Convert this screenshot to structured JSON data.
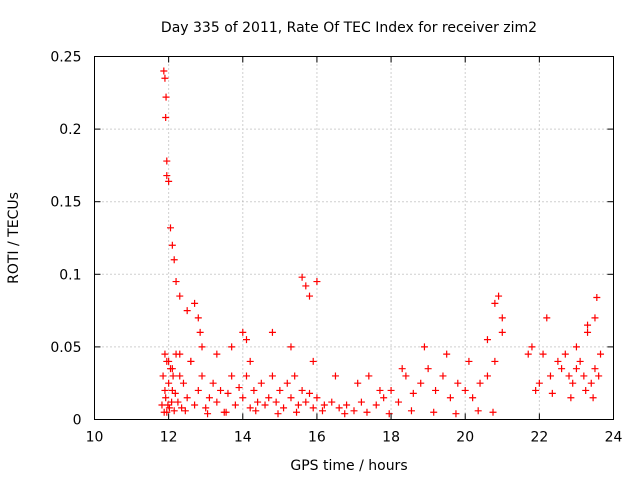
{
  "chart_data": {
    "type": "scatter",
    "title": "Day 335 of 2011, Rate Of TEC Index for receiver zim2",
    "xlabel": "GPS time / hours",
    "ylabel": "ROTI / TECUs",
    "xlim": [
      10,
      24
    ],
    "ylim": [
      0,
      0.25
    ],
    "xticks": [
      "10",
      "12",
      "14",
      "16",
      "18",
      "20",
      "22",
      "24"
    ],
    "yticks": [
      "0",
      "0.05",
      "0.1",
      "0.15",
      "0.2",
      "0.25"
    ],
    "grid": true,
    "marker": "+",
    "series": [
      {
        "color": "#ff0000",
        "x": [
          11.82,
          11.85,
          11.88,
          11.9,
          11.92,
          11.95,
          11.98,
          12.0,
          12.02,
          12.05,
          12.08,
          12.1,
          12.12,
          12.15,
          12.18,
          12.2,
          12.25,
          12.3,
          12.35,
          12.4,
          12.5,
          12.6,
          12.7,
          12.8,
          12.9,
          13.0,
          13.1,
          13.2,
          13.3,
          13.4,
          13.5,
          13.6,
          13.7,
          13.8,
          13.9,
          14.0,
          14.1,
          14.2,
          14.3,
          14.4,
          14.5,
          14.6,
          14.7,
          14.8,
          14.9,
          15.0,
          15.1,
          15.2,
          15.3,
          15.4,
          15.5,
          15.6,
          15.7,
          15.8,
          15.9,
          16.0,
          16.2,
          16.4,
          16.6,
          16.8,
          17.0,
          17.2,
          17.4,
          17.6,
          17.8,
          18.0,
          18.2,
          18.4,
          18.6,
          18.8,
          19.0,
          19.2,
          19.4,
          19.6,
          19.8,
          20.0,
          20.2,
          20.4,
          20.6,
          20.8,
          21.0,
          21.7,
          21.8,
          21.9,
          22.0,
          22.2,
          22.3,
          22.5,
          22.6,
          22.7,
          22.8,
          22.9,
          23.0,
          23.1,
          23.2,
          23.3,
          23.4,
          23.5,
          23.6,
          23.65,
          11.87,
          11.9,
          11.93,
          11.92,
          11.95,
          11.95,
          12.0,
          12.05,
          12.1,
          12.15,
          12.2,
          12.3,
          12.5,
          12.7,
          12.8,
          12.85,
          14.0,
          14.1,
          15.6,
          15.7,
          15.8,
          16.0,
          20.8,
          20.9,
          21.0,
          22.1,
          23.0,
          23.3,
          23.5,
          23.55,
          11.9,
          12.0,
          12.1,
          12.3,
          12.6,
          12.9,
          13.3,
          13.7,
          14.2,
          14.8,
          15.3,
          15.9,
          16.5,
          17.1,
          17.7,
          18.3,
          18.9,
          19.5,
          20.1,
          20.6,
          11.95,
          12.45,
          13.05,
          13.55,
          14.35,
          14.95,
          15.45,
          16.15,
          16.75,
          17.35,
          17.95,
          18.55,
          19.15,
          19.75,
          20.35,
          20.75,
          22.35,
          22.85,
          23.25,
          23.45
        ],
        "y": [
          0.01,
          0.03,
          0.005,
          0.02,
          0.015,
          0.04,
          0.01,
          0.025,
          0.008,
          0.035,
          0.012,
          0.02,
          0.03,
          0.006,
          0.018,
          0.045,
          0.012,
          0.03,
          0.008,
          0.025,
          0.015,
          0.04,
          0.01,
          0.02,
          0.03,
          0.008,
          0.015,
          0.025,
          0.012,
          0.02,
          0.005,
          0.018,
          0.03,
          0.01,
          0.022,
          0.015,
          0.03,
          0.008,
          0.02,
          0.012,
          0.025,
          0.01,
          0.015,
          0.03,
          0.012,
          0.02,
          0.008,
          0.025,
          0.015,
          0.03,
          0.01,
          0.02,
          0.012,
          0.018,
          0.008,
          0.015,
          0.01,
          0.012,
          0.008,
          0.01,
          0.006,
          0.012,
          0.03,
          0.01,
          0.015,
          0.02,
          0.012,
          0.03,
          0.018,
          0.025,
          0.035,
          0.02,
          0.03,
          0.015,
          0.025,
          0.02,
          0.015,
          0.025,
          0.03,
          0.04,
          0.06,
          0.045,
          0.05,
          0.02,
          0.025,
          0.07,
          0.03,
          0.04,
          0.035,
          0.045,
          0.03,
          0.025,
          0.035,
          0.04,
          0.03,
          0.06,
          0.025,
          0.035,
          0.03,
          0.045,
          0.24,
          0.235,
          0.222,
          0.208,
          0.178,
          0.168,
          0.164,
          0.132,
          0.12,
          0.11,
          0.095,
          0.085,
          0.075,
          0.08,
          0.07,
          0.06,
          0.06,
          0.055,
          0.098,
          0.092,
          0.085,
          0.095,
          0.08,
          0.085,
          0.07,
          0.045,
          0.05,
          0.065,
          0.07,
          0.084,
          0.045,
          0.04,
          0.035,
          0.045,
          0.04,
          0.05,
          0.045,
          0.05,
          0.04,
          0.06,
          0.05,
          0.04,
          0.03,
          0.025,
          0.02,
          0.035,
          0.05,
          0.045,
          0.04,
          0.055,
          0.005,
          0.006,
          0.004,
          0.005,
          0.006,
          0.004,
          0.005,
          0.006,
          0.004,
          0.005,
          0.004,
          0.006,
          0.005,
          0.004,
          0.006,
          0.005,
          0.018,
          0.015,
          0.02,
          0.015
        ]
      }
    ]
  }
}
